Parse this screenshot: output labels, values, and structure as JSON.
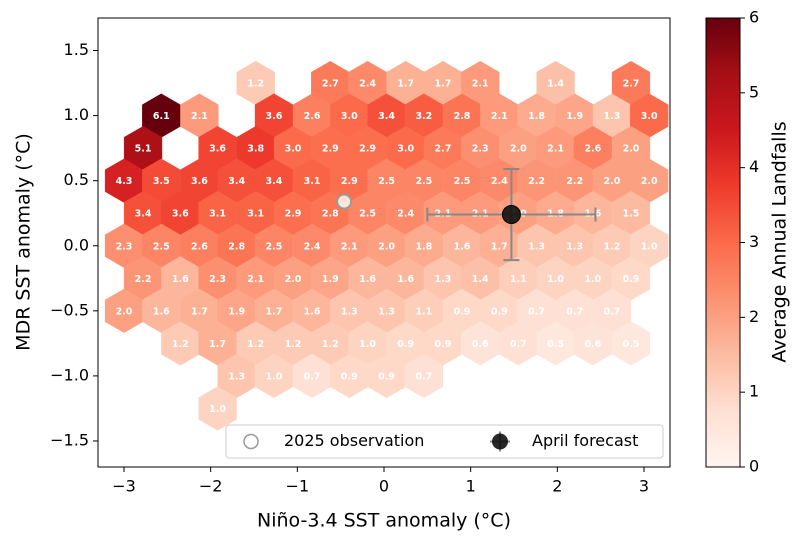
{
  "chart_data": {
    "type": "hexbin",
    "xlabel": "Niño-3.4 SST anomaly (°C)",
    "ylabel": "MDR SST anomaly (°C)",
    "xlim": [
      -3.3,
      3.3
    ],
    "ylim": [
      -1.7,
      1.75
    ],
    "xticks": [
      {
        "value": -3,
        "label": "−3"
      },
      {
        "value": -2,
        "label": "−2"
      },
      {
        "value": -1,
        "label": "−1"
      },
      0,
      1,
      2,
      3
    ],
    "yticks": [
      {
        "value": -1.5,
        "label": "−1.5"
      },
      {
        "value": -1.0,
        "label": "−1.0"
      },
      {
        "value": -0.5,
        "label": "−0.5"
      },
      {
        "value": 0,
        "label": "0.0"
      },
      0.5,
      {
        "value": 1.0,
        "label": "1.0"
      },
      1.5
    ],
    "grid": false,
    "colormap": "Reds",
    "clim": [
      0,
      6
    ],
    "cticks": [
      0,
      1,
      2,
      3,
      4,
      5,
      6
    ],
    "colorbar_label": "Average Annual Landfalls",
    "hexes": {
      "x": [
        -1.48,
        -0.62,
        -0.19,
        0.25,
        0.68,
        1.11,
        1.98,
        2.85,
        -2.57,
        -2.13,
        -1.27,
        -0.83,
        -0.4,
        0.03,
        0.46,
        0.9,
        1.33,
        1.76,
        2.2,
        2.63,
        3.06,
        -2.78,
        -1.92,
        -1.48,
        -1.05,
        -0.62,
        -0.19,
        0.25,
        0.68,
        1.11,
        1.55,
        1.98,
        2.41,
        2.85,
        -3.0,
        -2.57,
        -2.13,
        -1.7,
        -1.27,
        -0.83,
        -0.4,
        0.03,
        0.46,
        0.9,
        1.33,
        1.76,
        2.2,
        2.63,
        3.06,
        -2.78,
        -2.35,
        -1.92,
        -1.48,
        -1.05,
        -0.62,
        -0.19,
        0.25,
        0.68,
        1.11,
        1.55,
        1.98,
        2.41,
        2.85,
        -3.0,
        -2.57,
        -2.13,
        -1.7,
        -1.27,
        -0.83,
        -0.4,
        0.03,
        0.46,
        0.9,
        1.33,
        1.76,
        2.2,
        2.63,
        3.06,
        -2.78,
        -2.35,
        -1.92,
        -1.48,
        -1.05,
        -0.62,
        -0.19,
        0.25,
        0.68,
        1.11,
        1.55,
        1.98,
        2.41,
        2.85,
        -3.0,
        -2.57,
        -2.13,
        -1.7,
        -1.27,
        -0.83,
        -0.4,
        0.03,
        0.46,
        0.9,
        1.33,
        1.76,
        2.2,
        2.63,
        -2.35,
        -1.92,
        -1.48,
        -1.05,
        -0.62,
        -0.19,
        0.25,
        0.68,
        1.11,
        1.55,
        1.98,
        2.41,
        2.85,
        -1.7,
        -1.27,
        -0.83,
        -0.4,
        0.03,
        0.46,
        -1.92
      ],
      "y": [
        1.25,
        1.25,
        1.25,
        1.25,
        1.25,
        1.25,
        1.25,
        1.25,
        1.0,
        1.0,
        1.0,
        1.0,
        1.0,
        1.0,
        1.0,
        1.0,
        1.0,
        1.0,
        1.0,
        1.0,
        1.0,
        0.75,
        0.75,
        0.75,
        0.75,
        0.75,
        0.75,
        0.75,
        0.75,
        0.75,
        0.75,
        0.75,
        0.75,
        0.75,
        0.5,
        0.5,
        0.5,
        0.5,
        0.5,
        0.5,
        0.5,
        0.5,
        0.5,
        0.5,
        0.5,
        0.5,
        0.5,
        0.5,
        0.5,
        0.25,
        0.25,
        0.25,
        0.25,
        0.25,
        0.25,
        0.25,
        0.25,
        0.25,
        0.25,
        0.25,
        0.25,
        0.25,
        0.25,
        0,
        0,
        0,
        0,
        0,
        0,
        0,
        0,
        0,
        0,
        0,
        0,
        0,
        0,
        0,
        -0.25,
        -0.25,
        -0.25,
        -0.25,
        -0.25,
        -0.25,
        -0.25,
        -0.25,
        -0.25,
        -0.25,
        -0.25,
        -0.25,
        -0.25,
        -0.25,
        -0.5,
        -0.5,
        -0.5,
        -0.5,
        -0.5,
        -0.5,
        -0.5,
        -0.5,
        -0.5,
        -0.5,
        -0.5,
        -0.5,
        -0.5,
        -0.5,
        -0.75,
        -0.75,
        -0.75,
        -0.75,
        -0.75,
        -0.75,
        -0.75,
        -0.75,
        -0.75,
        -0.75,
        -0.75,
        -0.75,
        -0.75,
        -1.0,
        -1.0,
        -1.0,
        -1.0,
        -1.0,
        -1.0,
        -1.25
      ],
      "values": [
        1.2,
        2.7,
        2.4,
        1.7,
        1.7,
        2.1,
        1.4,
        2.7,
        6.1,
        2.1,
        3.6,
        2.6,
        3.0,
        3.4,
        3.2,
        2.8,
        2.1,
        1.8,
        1.9,
        1.3,
        3.0,
        5.1,
        3.6,
        3.8,
        3.0,
        2.9,
        2.9,
        3.0,
        2.7,
        2.3,
        2.0,
        2.1,
        2.6,
        2.0,
        4.3,
        3.5,
        3.6,
        3.4,
        3.4,
        3.1,
        2.9,
        2.5,
        2.5,
        2.5,
        2.4,
        2.2,
        2.2,
        2.0,
        2.0,
        3.4,
        3.6,
        3.1,
        3.1,
        2.9,
        2.8,
        2.5,
        2.4,
        2.1,
        2.1,
        2.0,
        1.8,
        1.6,
        1.5,
        2.3,
        2.5,
        2.6,
        2.8,
        2.5,
        2.4,
        2.1,
        2.0,
        1.8,
        1.6,
        1.7,
        1.3,
        1.3,
        1.2,
        1.0,
        2.2,
        1.6,
        2.3,
        2.1,
        2.0,
        1.9,
        1.6,
        1.6,
        1.3,
        1.4,
        1.1,
        1.0,
        1.0,
        0.9,
        2.0,
        1.6,
        1.7,
        1.9,
        1.7,
        1.6,
        1.3,
        1.3,
        1.1,
        0.9,
        0.9,
        0.7,
        0.7,
        0.7,
        1.2,
        1.7,
        1.2,
        1.2,
        1.2,
        1.0,
        0.9,
        0.9,
        0.6,
        0.7,
        0.5,
        0.6,
        0.5,
        1.3,
        1.0,
        0.7,
        0.9,
        0.9,
        0.7,
        1.0
      ],
      "value_labels": [
        "1.2",
        "2.7",
        "2.4",
        "1.7",
        "1.7",
        "2.1",
        "1.4",
        "2.7",
        "6.1",
        "2.1",
        "3.6",
        "2.6",
        "3.0",
        "3.4",
        "3.2",
        "2.8",
        "2.1",
        "1.8",
        "1.9",
        "1.3",
        "3.0",
        "5.1",
        "3.6",
        "3.8",
        "3.0",
        "2.9",
        "2.9",
        "3.0",
        "2.7",
        "2.3",
        "2.0",
        "2.1",
        "2.6",
        "2.0",
        "4.3",
        "3.5",
        "3.6",
        "3.4",
        "3.4",
        "3.1",
        "2.9",
        "2.5",
        "2.5",
        "2.5",
        "2.4",
        "2.2",
        "2.2",
        "2.0",
        "2.0",
        "3.4",
        "3.6",
        "3.1",
        "3.1",
        "2.9",
        "2.8",
        "2.5",
        "2.4",
        "2.1",
        "2.1",
        "2.0",
        "1.8",
        "1.6",
        "1.5",
        "2.3",
        "2.5",
        "2.6",
        "2.8",
        "2.5",
        "2.4",
        "2.1",
        "2.0",
        "1.8",
        "1.6",
        "1.7",
        "1.3",
        "1.3",
        "1.2",
        "1.0",
        "2.2",
        "1.6",
        "2.3",
        "2.1",
        "2.0",
        "1.9",
        "1.6",
        "1.6",
        "1.3",
        "1.4",
        "1.1",
        "1.0",
        "1.0",
        "0.9",
        "2.0",
        "1.6",
        "1.7",
        "1.9",
        "1.7",
        "1.6",
        "1.3",
        "1.3",
        "1.1",
        "0.9",
        "0.9",
        "0.7",
        "0.7",
        "0.7",
        "1.2",
        "1.7",
        "1.2",
        "1.2",
        "1.2",
        "1.0",
        "0.9",
        "0.9",
        "0.6",
        "0.7",
        "0.5",
        "0.6",
        "0.5",
        "1.3",
        "1.0",
        "0.7",
        "0.9",
        "0.9",
        "0.7",
        "1.0"
      ]
    },
    "observation": {
      "name": "2025 observation",
      "x": -0.46,
      "y": 0.34
    },
    "forecast": {
      "name": "April forecast",
      "x": 1.47,
      "y": 0.24,
      "xerr": 0.97,
      "yerr": 0.35
    },
    "legend": "lower right"
  }
}
